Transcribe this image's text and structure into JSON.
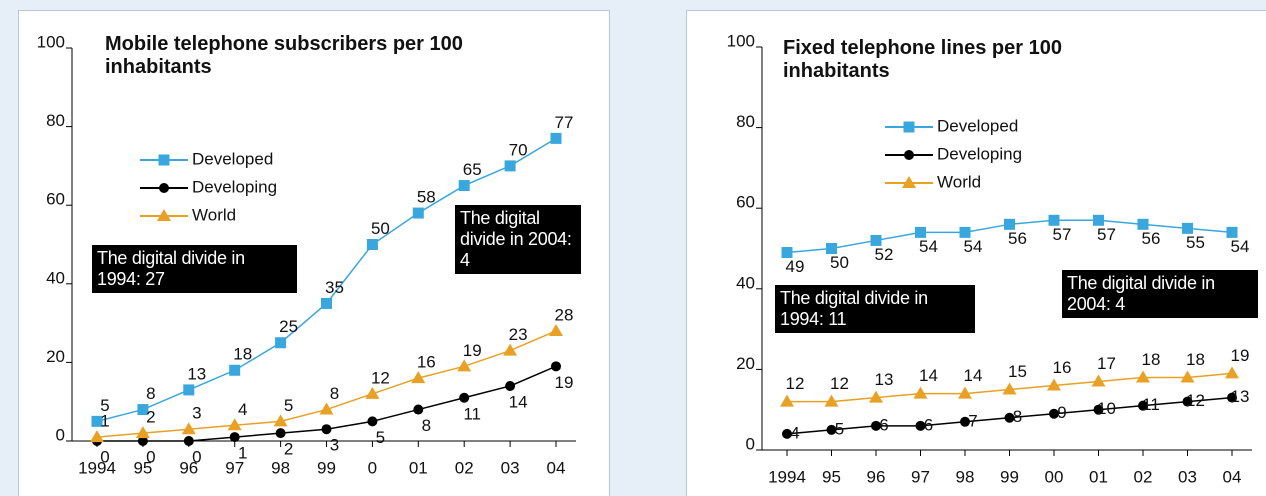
{
  "chart_data": [
    {
      "type": "line",
      "title": "Mobile telephone subscribers per 100 inhabitants",
      "categories": [
        "1994",
        "95",
        "96",
        "97",
        "98",
        "99",
        "0",
        "01",
        "02",
        "03",
        "04"
      ],
      "series": [
        {
          "name": "Developed",
          "color": "#3aa6de",
          "marker": "square",
          "values": [
            5,
            8,
            13,
            18,
            25,
            35,
            50,
            58,
            65,
            70,
            77
          ]
        },
        {
          "name": "Developing",
          "color": "#000000",
          "marker": "circle",
          "values": [
            0,
            0,
            0,
            1,
            2,
            3,
            5,
            8,
            11,
            14,
            19
          ]
        },
        {
          "name": "World",
          "color": "#e8a025",
          "marker": "triangle",
          "values": [
            1,
            2,
            3,
            4,
            5,
            8,
            12,
            16,
            19,
            23,
            28
          ]
        }
      ],
      "ylim": [
        0,
        100
      ],
      "yticks": [
        0,
        20,
        40,
        60,
        80,
        100
      ],
      "annotations": [
        "The digital divide in 1994: 27",
        "The digital divide in 2004: 4"
      ]
    },
    {
      "type": "line",
      "title": "Fixed telephone lines per 100 inhabitants",
      "categories": [
        "1994",
        "95",
        "96",
        "97",
        "98",
        "99",
        "00",
        "01",
        "02",
        "03",
        "04"
      ],
      "series": [
        {
          "name": "Developed",
          "color": "#3aa6de",
          "marker": "square",
          "values": [
            49,
            50,
            52,
            54,
            54,
            56,
            57,
            57,
            56,
            55,
            54
          ]
        },
        {
          "name": "Developing",
          "color": "#000000",
          "marker": "circle",
          "values": [
            4,
            5,
            6,
            6,
            7,
            8,
            9,
            10,
            11,
            12,
            13
          ]
        },
        {
          "name": "World",
          "color": "#e8a025",
          "marker": "triangle",
          "values": [
            12,
            12,
            13,
            14,
            14,
            15,
            16,
            17,
            18,
            18,
            19
          ]
        }
      ],
      "ylim": [
        0,
        100
      ],
      "yticks": [
        0,
        20,
        40,
        60,
        80,
        100
      ],
      "annotations": [
        "The digital divide in 1994: 11",
        "The digital divide in 2004: 4"
      ]
    }
  ]
}
